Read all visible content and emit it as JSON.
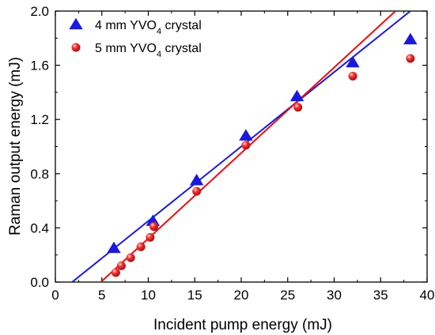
{
  "chart_data": {
    "type": "scatter",
    "title": "",
    "xlabel": "Incident pump energy (mJ)",
    "ylabel": "Raman output energy (mJ)",
    "xlim": [
      0,
      40
    ],
    "ylim": [
      0,
      2.0
    ],
    "xticks": [
      "0",
      "5",
      "10",
      "15",
      "20",
      "25",
      "30",
      "35",
      "40"
    ],
    "yticks": [
      "0.0",
      "0.4",
      "0.8",
      "1.2",
      "1.6",
      "2.0"
    ],
    "legend_position": "top-left",
    "series": [
      {
        "name": "4 mm YVO4 crystal",
        "legend_main": "4 mm YVO",
        "legend_sub": "4",
        "legend_suffix": " crystal",
        "marker": "triangle",
        "color": "#1a1adc",
        "x": [
          6.3,
          10.5,
          15.2,
          20.5,
          26.0,
          32.0,
          38.2
        ],
        "y": [
          0.25,
          0.45,
          0.75,
          1.08,
          1.37,
          1.62,
          1.79
        ],
        "fit": {
          "x": [
            1.8,
            38.2
          ],
          "y": [
            0.0,
            2.0
          ]
        }
      },
      {
        "name": "5 mm YVO4 crystal",
        "legend_main": "5 mm YVO",
        "legend_sub": "4",
        "legend_suffix": " crystal",
        "marker": "circle",
        "color": "#e51010",
        "x": [
          6.5,
          7.1,
          8.1,
          9.2,
          10.2,
          10.6,
          15.2,
          20.5,
          26.1,
          32.0,
          38.2
        ],
        "y": [
          0.07,
          0.12,
          0.18,
          0.26,
          0.33,
          0.41,
          0.67,
          1.01,
          1.29,
          1.52,
          1.65
        ],
        "fit": {
          "x": [
            4.9,
            36.6
          ],
          "y": [
            0.0,
            2.0
          ]
        }
      }
    ]
  }
}
